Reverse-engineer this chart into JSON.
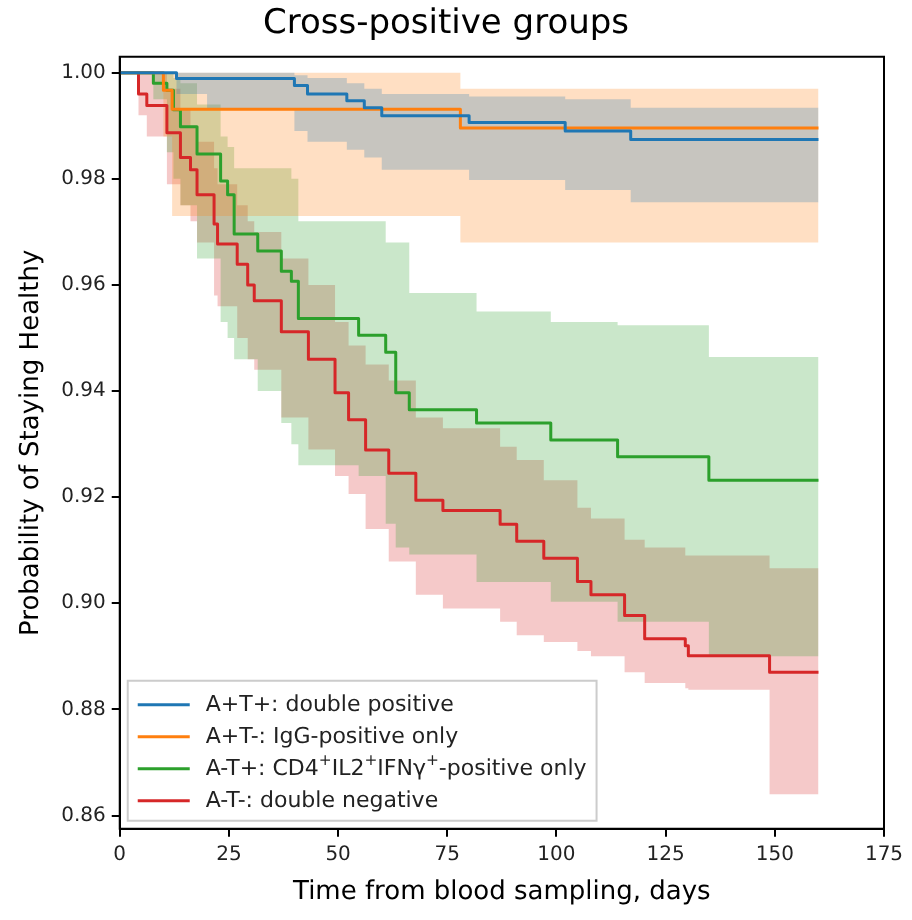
{
  "chart_data": {
    "type": "step",
    "title": "Cross-positive groups",
    "xlabel": "Time from blood sampling, days",
    "ylabel": "Probability of Staying Healthy",
    "xlim": [
      0,
      175
    ],
    "xticks": [
      0,
      25,
      50,
      75,
      100,
      125,
      150,
      175
    ],
    "ylim": [
      0.8575,
      1.003
    ],
    "yticks": [
      {
        "value": 0.86,
        "label": "0.86"
      },
      {
        "value": 0.88,
        "label": "0.88"
      },
      {
        "value": 0.9,
        "label": "0.90"
      },
      {
        "value": 0.92,
        "label": "0.92"
      },
      {
        "value": 0.94,
        "label": "0.94"
      },
      {
        "value": 0.96,
        "label": "0.96"
      },
      {
        "value": 0.98,
        "label": "0.98"
      },
      {
        "value": 1.0,
        "label": "1.00"
      }
    ],
    "grid": false,
    "legend": "bottom left",
    "marker": "none",
    "line_style": "solid",
    "series": [
      {
        "name": "A+T+: double positive",
        "color": "#1f77b4",
        "x": [
          0,
          13,
          20,
          40,
          43,
          52,
          56,
          60,
          80,
          102,
          117,
          160
        ],
        "values": [
          1.0,
          0.9989,
          0.9989,
          0.9976,
          0.996,
          0.9947,
          0.9934,
          0.9919,
          0.9906,
          0.989,
          0.9874,
          0.9874
        ],
        "lower": [
          1.0,
          0.996,
          0.993,
          0.989,
          0.987,
          0.9855,
          0.984,
          0.9817,
          0.9798,
          0.9779,
          0.9756,
          0.9756
        ],
        "upper": [
          1.0,
          1.0,
          1.0,
          0.9995,
          0.999,
          0.998,
          0.997,
          0.996,
          0.9955,
          0.995,
          0.9934,
          0.9934
        ]
      },
      {
        "name": "A+T-: IgG-positive only",
        "color": "#ff7f0e",
        "x": [
          0,
          10,
          12,
          78,
          160
        ],
        "values": [
          1.0,
          0.9967,
          0.9931,
          0.9896,
          0.9896
        ],
        "lower": [
          1.0,
          0.988,
          0.973,
          0.968,
          0.968
        ],
        "upper": [
          1.0,
          1.0,
          1.0,
          0.997,
          0.997
        ]
      },
      {
        "name": "A-T+: CD4$^{+}$IL2$^{+}$IFNγ$^{+}$-positive only",
        "color": "#2ca02c",
        "x": [
          0,
          7.7,
          10.8,
          12.3,
          13.9,
          17.7,
          23.1,
          24.7,
          26.2,
          31.6,
          37,
          39.3,
          40.9,
          54.7,
          60.9,
          63.2,
          66.3,
          81.7,
          98.7,
          114,
          134.9,
          160
        ],
        "values": [
          1.0,
          0.998,
          0.9967,
          0.993,
          0.9898,
          0.9847,
          0.9796,
          0.977,
          0.9696,
          0.9664,
          0.9626,
          0.9607,
          0.9537,
          0.9505,
          0.9473,
          0.9397,
          0.9365,
          0.934,
          0.9308,
          0.9276,
          0.9232,
          0.9232
        ],
        "lower": [
          1.0,
          0.995,
          0.985,
          0.98,
          0.975,
          0.965,
          0.953,
          0.95,
          0.946,
          0.94,
          0.934,
          0.93,
          0.926,
          0.924,
          0.915,
          0.9105,
          0.9092,
          0.904,
          0.9003,
          0.8965,
          0.89,
          0.89
        ],
        "upper": [
          1.0,
          1.0,
          1.0,
          0.999,
          0.998,
          0.994,
          0.988,
          0.986,
          0.982,
          0.982,
          0.982,
          0.98,
          0.972,
          0.972,
          0.968,
          0.968,
          0.9585,
          0.955,
          0.953,
          0.9524,
          0.9464,
          0.9464
        ]
      },
      {
        "name": "A-T-: double negative",
        "color": "#d62728",
        "x": [
          0,
          4.3,
          6.2,
          10.8,
          13.9,
          16.2,
          17.7,
          21.6,
          22.4,
          26.9,
          29.3,
          30.8,
          37,
          43.2,
          49.3,
          52.4,
          56.3,
          61.6,
          67.8,
          74,
          87.1,
          90.9,
          97.1,
          104.8,
          107.9,
          115.6,
          120.2,
          129.5,
          130.2,
          148.8,
          160
        ],
        "values": [
          1.0,
          0.996,
          0.9938,
          0.9887,
          0.984,
          0.9817,
          0.977,
          0.9715,
          0.9677,
          0.9639,
          0.96,
          0.957,
          0.9512,
          0.946,
          0.9397,
          0.9346,
          0.9289,
          0.9245,
          0.9194,
          0.9175,
          0.9149,
          0.9117,
          0.9085,
          0.9041,
          0.9016,
          0.8977,
          0.8933,
          0.892,
          0.8901,
          0.887,
          0.887
        ],
        "lower": [
          1.0,
          0.992,
          0.988,
          0.979,
          0.975,
          0.972,
          0.968,
          0.958,
          0.956,
          0.95,
          0.946,
          0.944,
          0.935,
          0.929,
          0.924,
          0.9206,
          0.914,
          0.9079,
          0.9016,
          0.899,
          0.8965,
          0.894,
          0.8927,
          0.891,
          0.89,
          0.887,
          0.885,
          0.884,
          0.8837,
          0.864,
          0.864
        ],
        "upper": [
          1.0,
          1.0,
          1.0,
          0.997,
          0.993,
          0.99,
          0.987,
          0.982,
          0.979,
          0.975,
          0.972,
          0.97,
          0.965,
          0.96,
          0.953,
          0.9486,
          0.945,
          0.942,
          0.935,
          0.933,
          0.9295,
          0.927,
          0.9232,
          0.918,
          0.916,
          0.912,
          0.9105,
          0.909,
          0.909,
          0.9066,
          0.9066
        ]
      }
    ]
  }
}
